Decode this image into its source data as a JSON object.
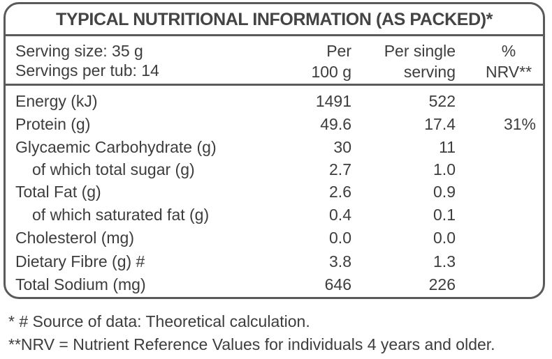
{
  "title": "TYPICAL NUTRITIONAL INFORMATION (AS PACKED)*",
  "header": {
    "serving_size": "Serving size: 35 g",
    "servings_per_tub": "Servings per tub: 14",
    "col_per100_line1": "Per",
    "col_per100_line2": "100 g",
    "col_serving_line1": "Per single",
    "col_serving_line2": "serving",
    "col_nrv_line1": "%",
    "col_nrv_line2": "NRV**"
  },
  "rows": [
    {
      "label": "Energy (kJ)",
      "per100": "1491",
      "serving": "522",
      "nrv": ""
    },
    {
      "label": "Protein (g)",
      "per100": "49.6",
      "serving": "17.4",
      "nrv": "31%"
    },
    {
      "label": "Glycaemic Carbohydrate (g)",
      "per100": "30",
      "serving": "11",
      "nrv": ""
    },
    {
      "label": "of which total sugar (g)",
      "per100": "2.7",
      "serving": "1.0",
      "nrv": ""
    },
    {
      "label": "Total Fat (g)",
      "per100": "2.6",
      "serving": "0.9",
      "nrv": ""
    },
    {
      "label": "of which saturated fat (g)",
      "per100": "0.4",
      "serving": "0.1",
      "nrv": ""
    },
    {
      "label": "Cholesterol (mg)",
      "per100": "0.0",
      "serving": "0.0",
      "nrv": ""
    },
    {
      "label": "Dietary Fibre (g) #",
      "per100": "3.8",
      "serving": "1.3",
      "nrv": ""
    },
    {
      "label": "Total Sodium (mg)",
      "per100": "646",
      "serving": "226",
      "nrv": ""
    }
  ],
  "footnotes": {
    "source": "* # Source of data: Theoretical calculation.",
    "nrv": "**NRV = Nutrient Reference Values for individuals 4 years and older."
  }
}
